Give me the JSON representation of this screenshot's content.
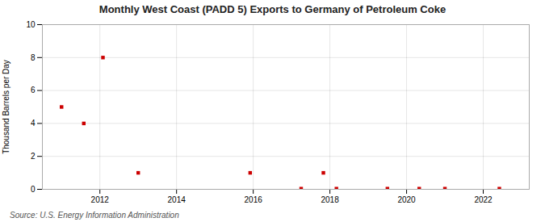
{
  "chart_data": {
    "type": "scatter",
    "title": "Monthly West Coast (PADD 5) Exports to Germany of Petroleum Coke",
    "ylabel": "Thousand Barrels per Day",
    "source": "Source: U.S. Energy Information Administration",
    "x": [
      2011.0,
      2011.58,
      2012.08,
      2013.0,
      2015.92,
      2017.25,
      2017.83,
      2018.17,
      2019.5,
      2020.33,
      2021.0,
      2022.42
    ],
    "values": [
      5,
      4,
      8,
      1,
      1,
      0.04,
      1,
      0.04,
      0.04,
      0.04,
      0.04,
      0.04
    ],
    "color": "#cc0000",
    "marker": "square",
    "xlim": [
      2010.5,
      2023.2
    ],
    "ylim": [
      0,
      10
    ],
    "xticks": [
      2012,
      2014,
      2016,
      2018,
      2020,
      2022
    ],
    "yticks": [
      0,
      2,
      4,
      6,
      8,
      10
    ],
    "grid": true
  }
}
